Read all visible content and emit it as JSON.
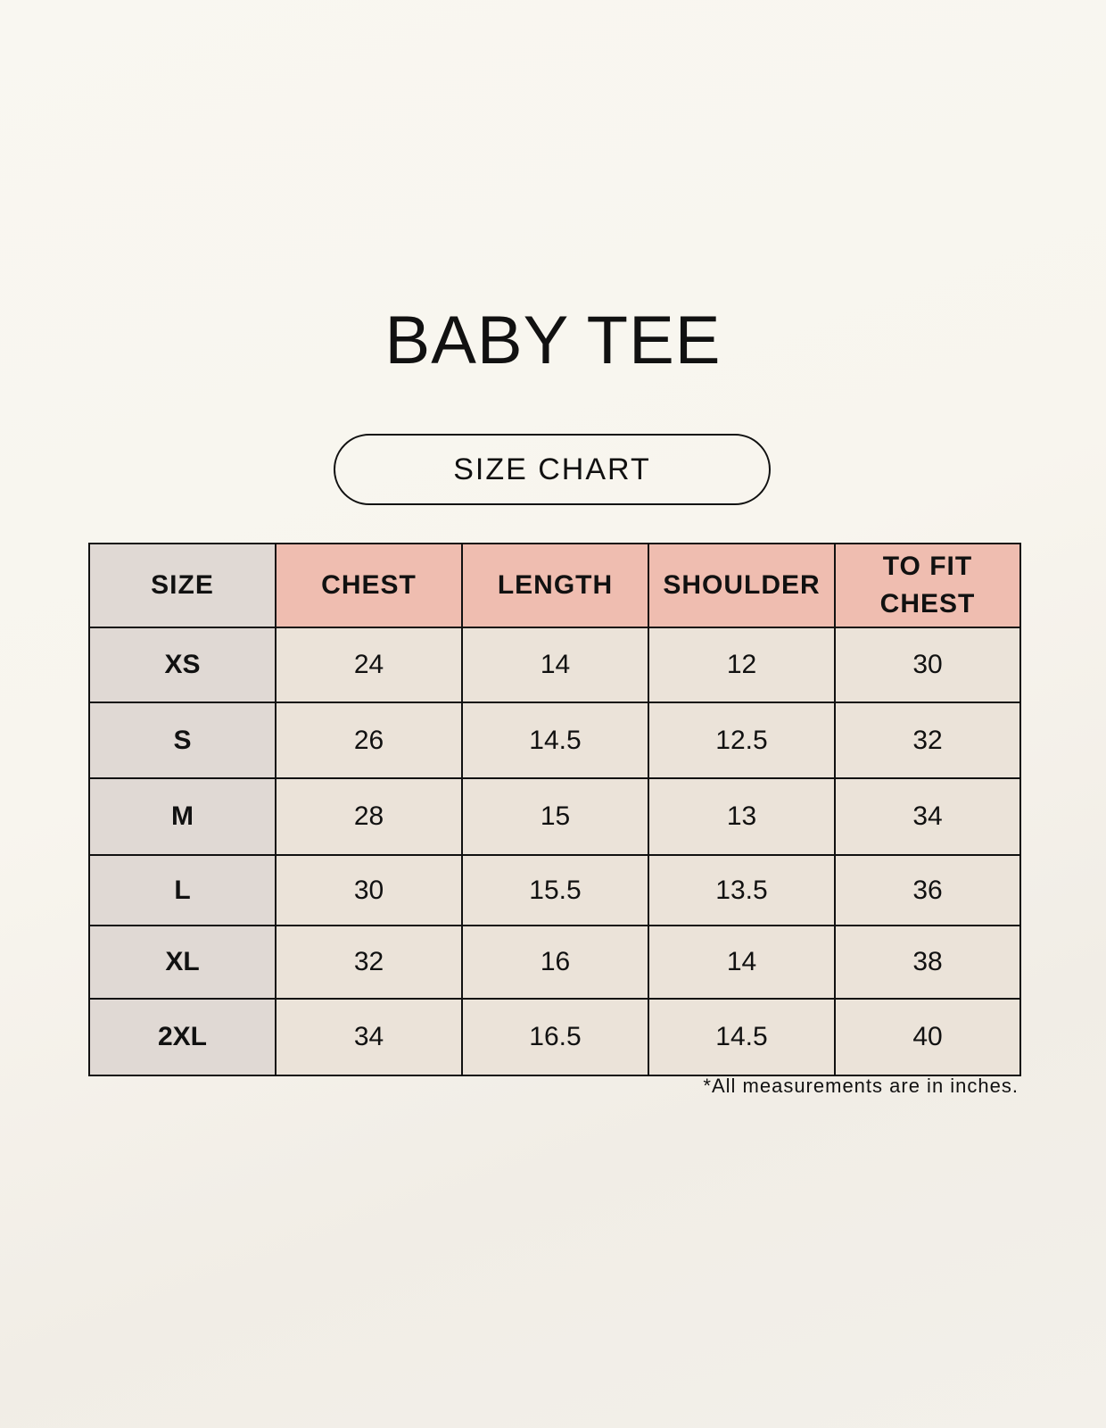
{
  "title": "BABY TEE",
  "subtitle": "SIZE CHART",
  "table": {
    "headers": [
      "SIZE",
      "CHEST",
      "LENGTH",
      "SHOULDER",
      "TO FIT CHEST"
    ],
    "rows": [
      [
        "XS",
        "24",
        "14",
        "12",
        "30"
      ],
      [
        "S",
        "26",
        "14.5",
        "12.5",
        "32"
      ],
      [
        "M",
        "28",
        "15",
        "13",
        "34"
      ],
      [
        "L",
        "30",
        "15.5",
        "13.5",
        "36"
      ],
      [
        "XL",
        "32",
        "16",
        "14",
        "38"
      ],
      [
        "2XL",
        "34",
        "16.5",
        "14.5",
        "40"
      ]
    ]
  },
  "note": "*All measurements are in inches.",
  "colors": {
    "header_accent": "#efbdb0",
    "size_column": "#e0d9d4",
    "cell": "#ebe3d9"
  }
}
